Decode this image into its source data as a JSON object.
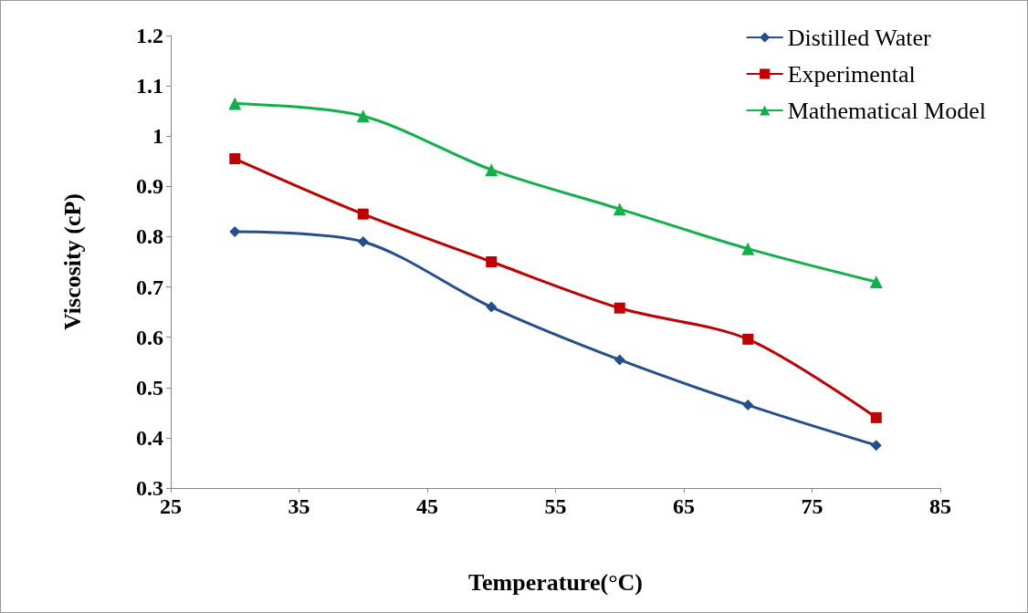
{
  "chart_data": {
    "type": "line",
    "xlabel": "Temperature(°C)",
    "ylabel": "Viscosity (cP)",
    "x": [
      30,
      40,
      50,
      60,
      70,
      80
    ],
    "series": [
      {
        "name": "Distilled Water",
        "color": "#254f8c",
        "marker": "diamond",
        "values": [
          0.81,
          0.79,
          0.66,
          0.555,
          0.465,
          0.385
        ]
      },
      {
        "name": "Experimental",
        "color": "#c00000",
        "marker": "square",
        "values": [
          0.955,
          0.845,
          0.75,
          0.658,
          0.596,
          0.44
        ]
      },
      {
        "name": "Mathematical Model",
        "color": "#11b04a",
        "marker": "triangle",
        "values": [
          1.065,
          1.04,
          0.933,
          0.855,
          0.776,
          0.71
        ]
      }
    ],
    "xlim": [
      25,
      85
    ],
    "xticks": [
      25,
      35,
      45,
      55,
      65,
      75,
      85
    ],
    "ylim": [
      0.3,
      1.2
    ],
    "yticks": [
      0.3,
      0.4,
      0.5,
      0.6,
      0.7,
      0.8,
      0.9,
      1,
      1.1,
      1.2
    ],
    "grid": false,
    "legend": "top right",
    "line_style": "solid"
  }
}
